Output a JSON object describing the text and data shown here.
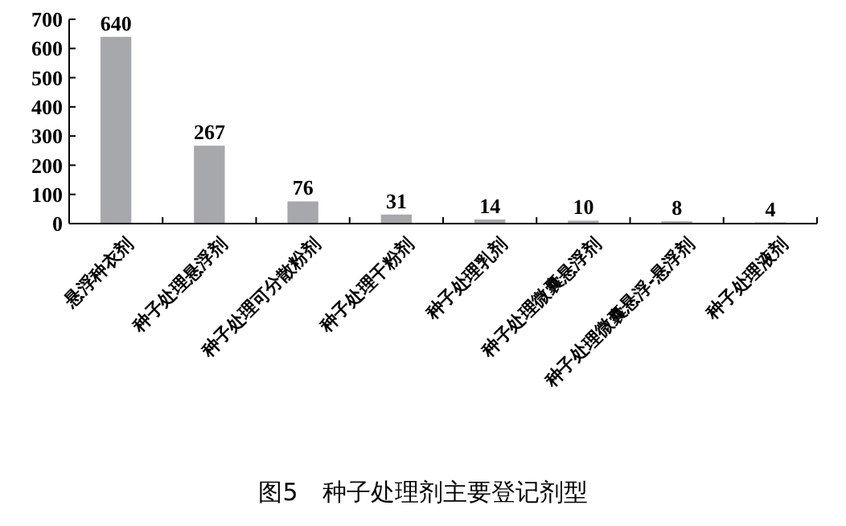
{
  "chart_data": {
    "type": "bar",
    "title": "图5　种子处理剂主要登记剂型",
    "categories": [
      "悬浮种衣剂",
      "种子处理悬浮剂",
      "种子处理可分散粉剂",
      "种子处理干粉剂",
      "种子处理乳剂",
      "种子处理微囊悬浮剂",
      "种子处理微囊悬浮-悬浮剂",
      "种子处理液剂"
    ],
    "values": [
      640,
      267,
      76,
      31,
      14,
      10,
      8,
      4
    ],
    "color": "#a7a8ab",
    "data_labels": true,
    "ylim": [
      0,
      700
    ],
    "yticks": [
      0,
      100,
      200,
      300,
      400,
      500,
      600,
      700
    ],
    "grid": false
  }
}
